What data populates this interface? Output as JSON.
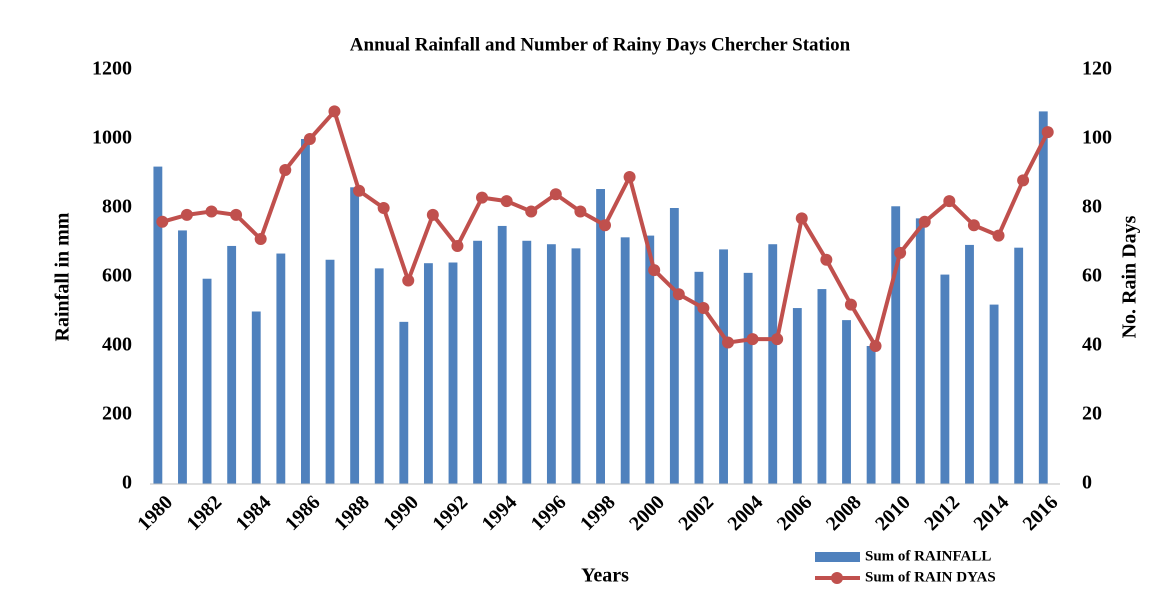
{
  "chart_data": {
    "type": "bar",
    "title": "Annual Rainfall and Number of Rainy Days Chercher Station",
    "x_label": "Years",
    "y_label": "Rainfall in mm",
    "y2_label": "No. Rain Days",
    "x": [
      1980,
      1981,
      1982,
      1983,
      1984,
      1985,
      1986,
      1987,
      1988,
      1989,
      1990,
      1991,
      1992,
      1993,
      1994,
      1995,
      1996,
      1997,
      1998,
      1999,
      2000,
      2001,
      2002,
      2003,
      2004,
      2005,
      2006,
      2007,
      2008,
      2009,
      2010,
      2011,
      2012,
      2013,
      2014,
      2015,
      2016
    ],
    "xlim": [
      1979.5,
      2016.5
    ],
    "xticks": [
      1980,
      1982,
      1984,
      1986,
      1988,
      1990,
      1992,
      1994,
      1996,
      1998,
      2000,
      2002,
      2004,
      2006,
      2008,
      2010,
      2012,
      2014,
      2016
    ],
    "ylim": [
      0,
      1200
    ],
    "yticks": [
      0,
      200,
      400,
      600,
      800,
      1000,
      1200
    ],
    "y2lim": [
      0,
      120
    ],
    "y2ticks": [
      0,
      20,
      40,
      60,
      80,
      100,
      120
    ],
    "legend": "bottom-right",
    "series": [
      {
        "name": "Sum of RAINFALL",
        "type": "bar",
        "color": "#4f81bd",
        "values": [
          920,
          735,
          595,
          690,
          500,
          668,
          1000,
          650,
          860,
          625,
          470,
          640,
          642,
          705,
          748,
          705,
          695,
          683,
          855,
          715,
          720,
          800,
          615,
          680,
          612,
          695,
          510,
          565,
          475,
          400,
          805,
          770,
          607,
          693,
          520,
          685,
          1080
        ]
      },
      {
        "name": "Sum of RAIN DYAS",
        "type": "line",
        "axis": "y2",
        "color": "#c0504d",
        "values": [
          76,
          78,
          79,
          78,
          71,
          91,
          100,
          108,
          85,
          80,
          59,
          78,
          69,
          83,
          82,
          79,
          84,
          79,
          75,
          89,
          62,
          55,
          51,
          41,
          42,
          42,
          77,
          65,
          52,
          40,
          67,
          76,
          82,
          75,
          72,
          88,
          102
        ]
      }
    ]
  }
}
